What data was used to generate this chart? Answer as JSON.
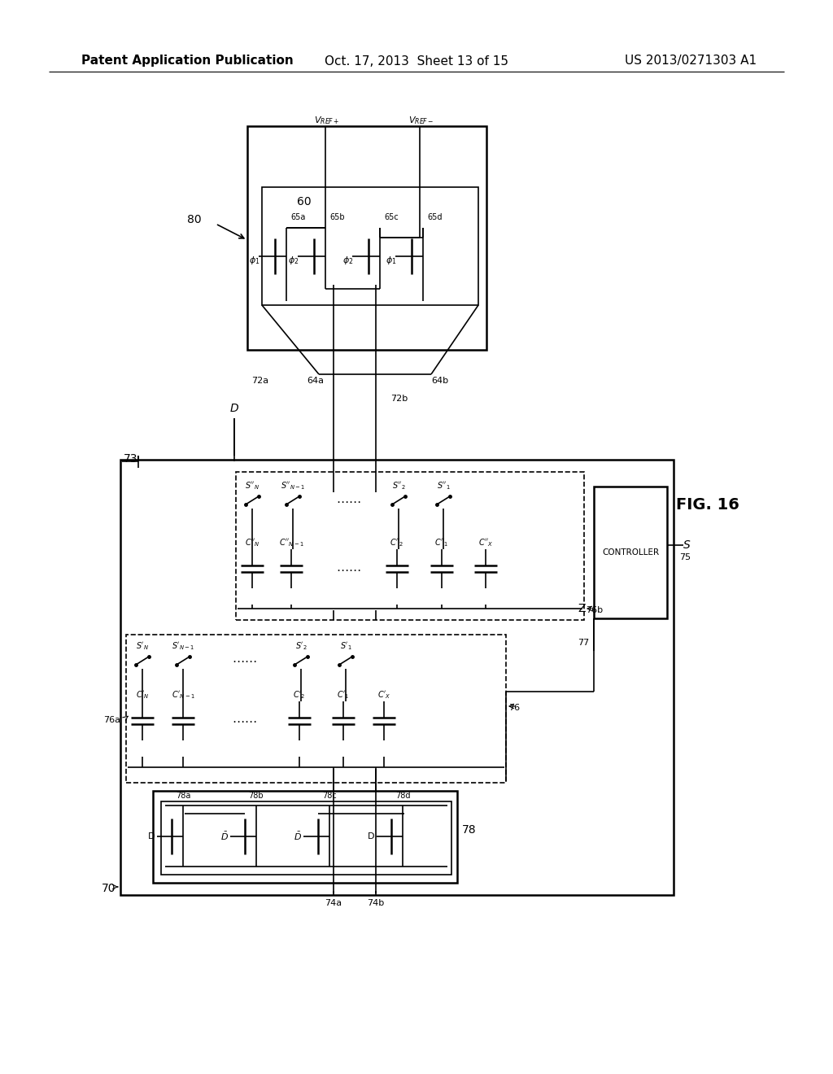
{
  "header_left": "Patent Application Publication",
  "header_center": "Oct. 17, 2013  Sheet 13 of 15",
  "header_right": "US 2013/0271303 A1",
  "bg_color": "#ffffff",
  "fig_label": "FIG. 16"
}
